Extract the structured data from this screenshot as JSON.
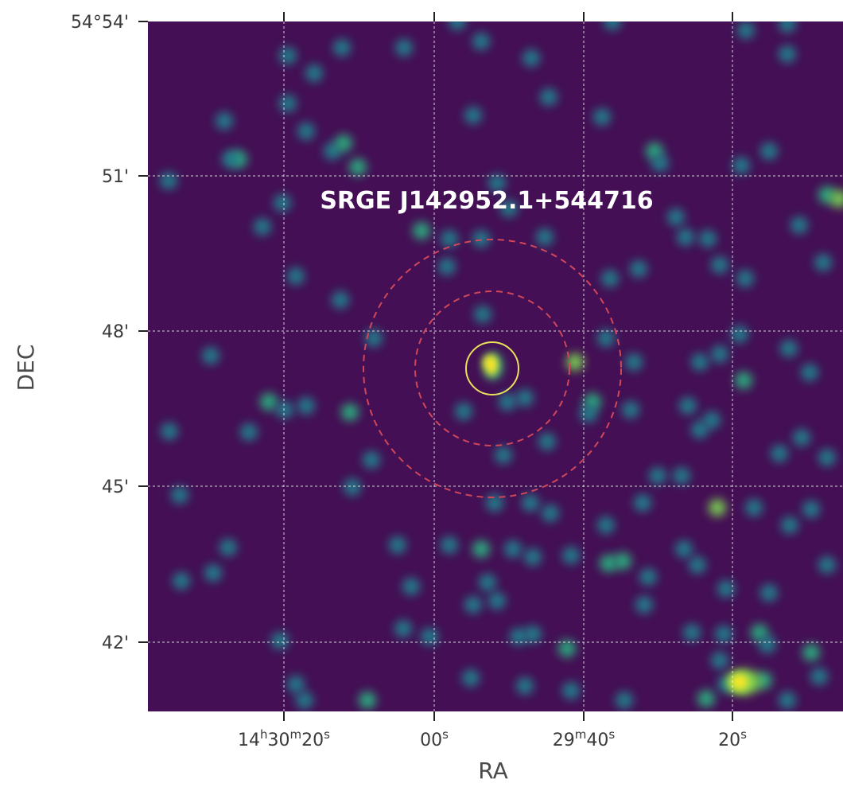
{
  "image": {
    "colormap": "viridis",
    "background_color": "#440f54",
    "grid_color": "#ffffff",
    "source_label": "SRGE J142952.1+544716",
    "source_label_color": "#ffffff"
  },
  "axes": {
    "xlabel": "RA",
    "ylabel": "DEC"
  },
  "ra_ticks": [
    {
      "parts": [
        "14",
        "h",
        "30",
        "m",
        "20",
        "s"
      ]
    },
    {
      "parts": [
        "00",
        "s"
      ]
    },
    {
      "parts": [
        "29",
        "m",
        "40",
        "s"
      ]
    },
    {
      "parts": [
        "20",
        "s"
      ]
    }
  ],
  "dec_ticks": [
    {
      "label": "54°54'"
    },
    {
      "label": "51'"
    },
    {
      "label": "48'"
    },
    {
      "label": "45'"
    },
    {
      "label": "42'"
    }
  ],
  "overlays": {
    "source_circle": {
      "color": "#e8e25a",
      "style": "solid"
    },
    "background_annulus": {
      "color": "#d0475a",
      "style": "dashed"
    }
  }
}
